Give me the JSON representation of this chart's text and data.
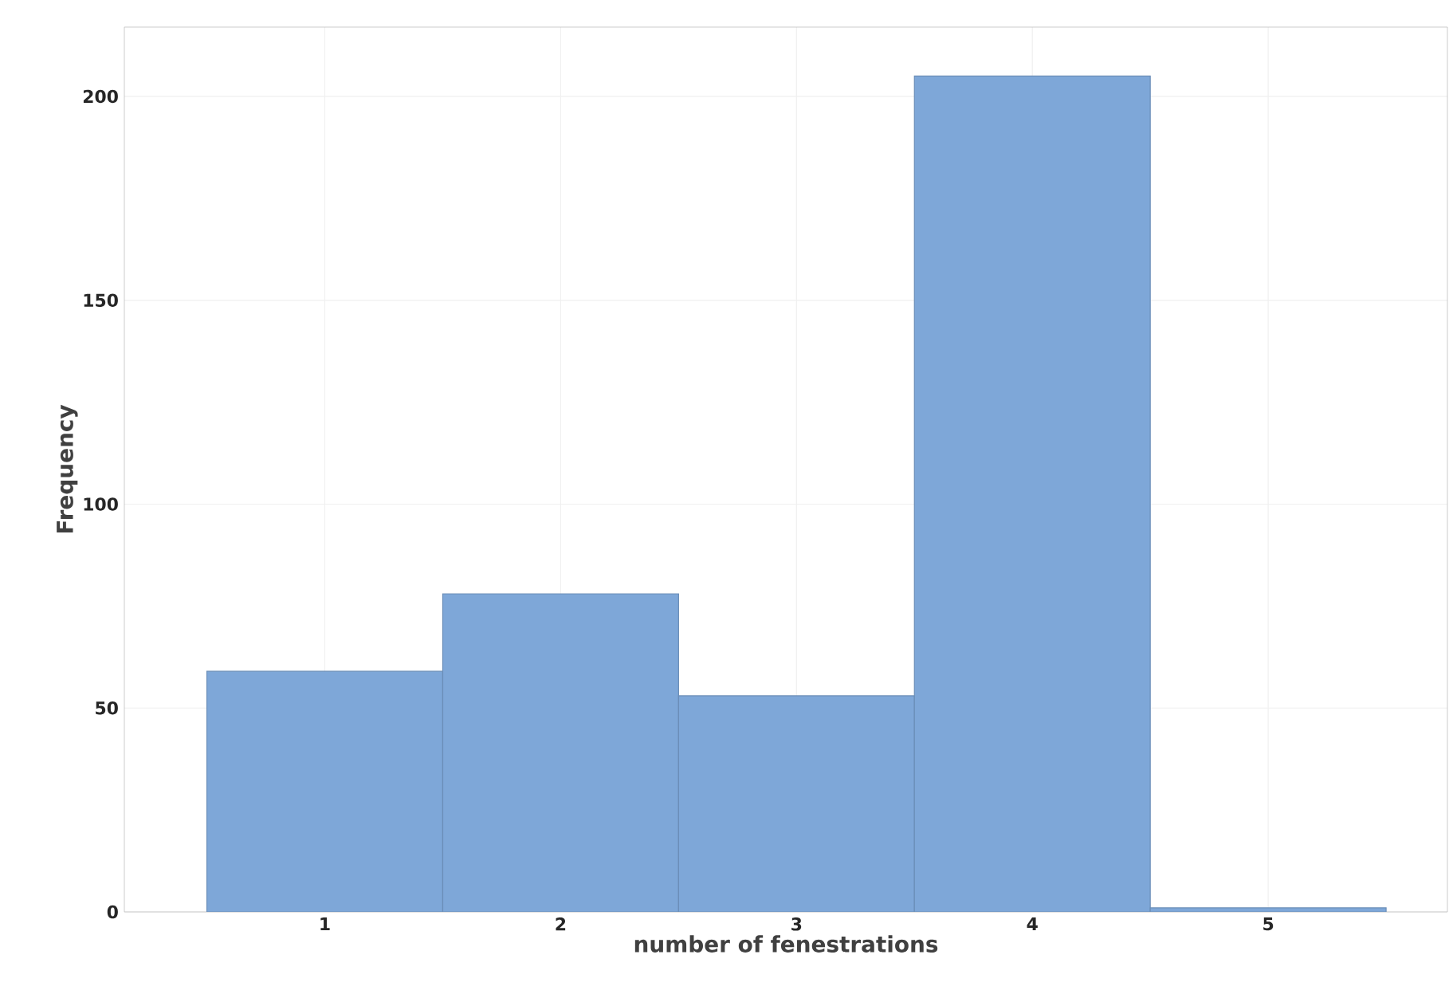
{
  "chart_data": {
    "type": "histogram",
    "xlabel": "number of fenestrations",
    "ylabel": "Frequency",
    "bins": [
      0.5,
      1.5,
      2.5,
      3.5,
      4.5,
      5.5
    ],
    "values": [
      59,
      78,
      53,
      205,
      1
    ],
    "color": "#7ea7d8",
    "xlim": [
      0.15,
      5.76
    ],
    "ylim": [
      0,
      217
    ],
    "xticks": [
      1,
      2,
      3,
      4,
      5
    ],
    "yticks": [
      0,
      50,
      100,
      150,
      200
    ],
    "grid": true
  }
}
